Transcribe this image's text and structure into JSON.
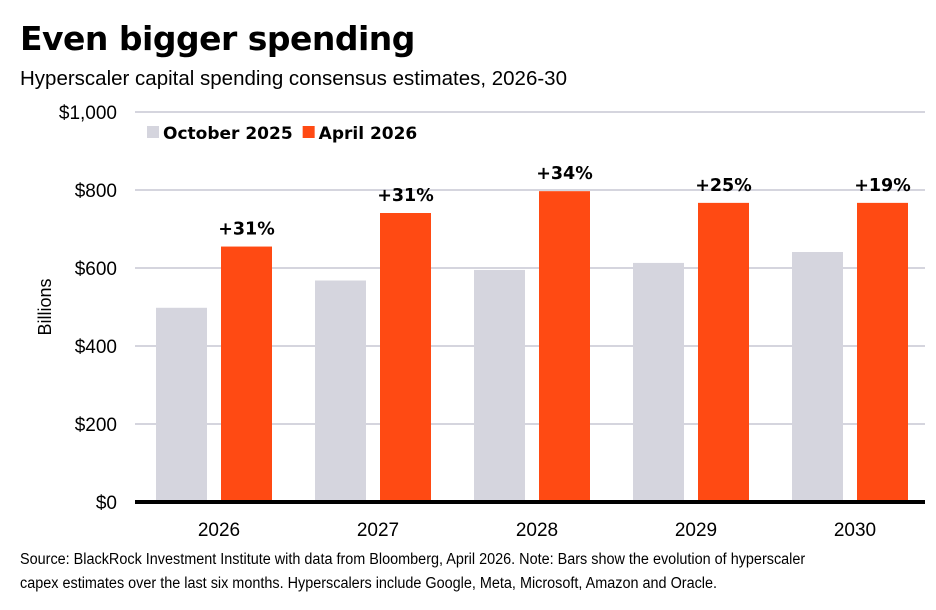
{
  "chart_data": {
    "type": "bar",
    "title": "Even bigger spending",
    "subtitle": "Hyperscaler capital spending consensus estimates, 2026-30",
    "xlabel": "",
    "ylabel": "Billions",
    "ylim": [
      0,
      1000
    ],
    "yticks": [
      0,
      200,
      400,
      600,
      800,
      1000
    ],
    "ytick_labels": [
      "$0",
      "$200",
      "$400",
      "$600",
      "$800",
      "$1,000"
    ],
    "grid": true,
    "legend_position": "top-left",
    "categories": [
      "2026",
      "2027",
      "2028",
      "2029",
      "2030"
    ],
    "series": [
      {
        "name": "October 2025",
        "color": "#d5d5de",
        "values": [
          498,
          568,
          595,
          613,
          641
        ]
      },
      {
        "name": "April 2026",
        "color": "#ff4a13",
        "values": [
          655,
          741,
          797,
          767,
          767
        ]
      }
    ],
    "annotations": [
      "+31%",
      "+31%",
      "+34%",
      "+25%",
      "+19%"
    ],
    "source": "Source: BlackRock Investment Institute with data from Bloomberg, April 2026. Note: Bars show the evolution of hyperscaler capex estimates over the last six months. Hyperscalers include Google, Meta, Microsoft, Amazon and Oracle.",
    "source_lines": [
      "Source: BlackRock Investment Institute with data from Bloomberg, April 2026. Note: Bars show the evolution of hyperscaler",
      "capex estimates over the last six months. Hyperscalers include Google, Meta, Microsoft, Amazon and Oracle."
    ]
  }
}
